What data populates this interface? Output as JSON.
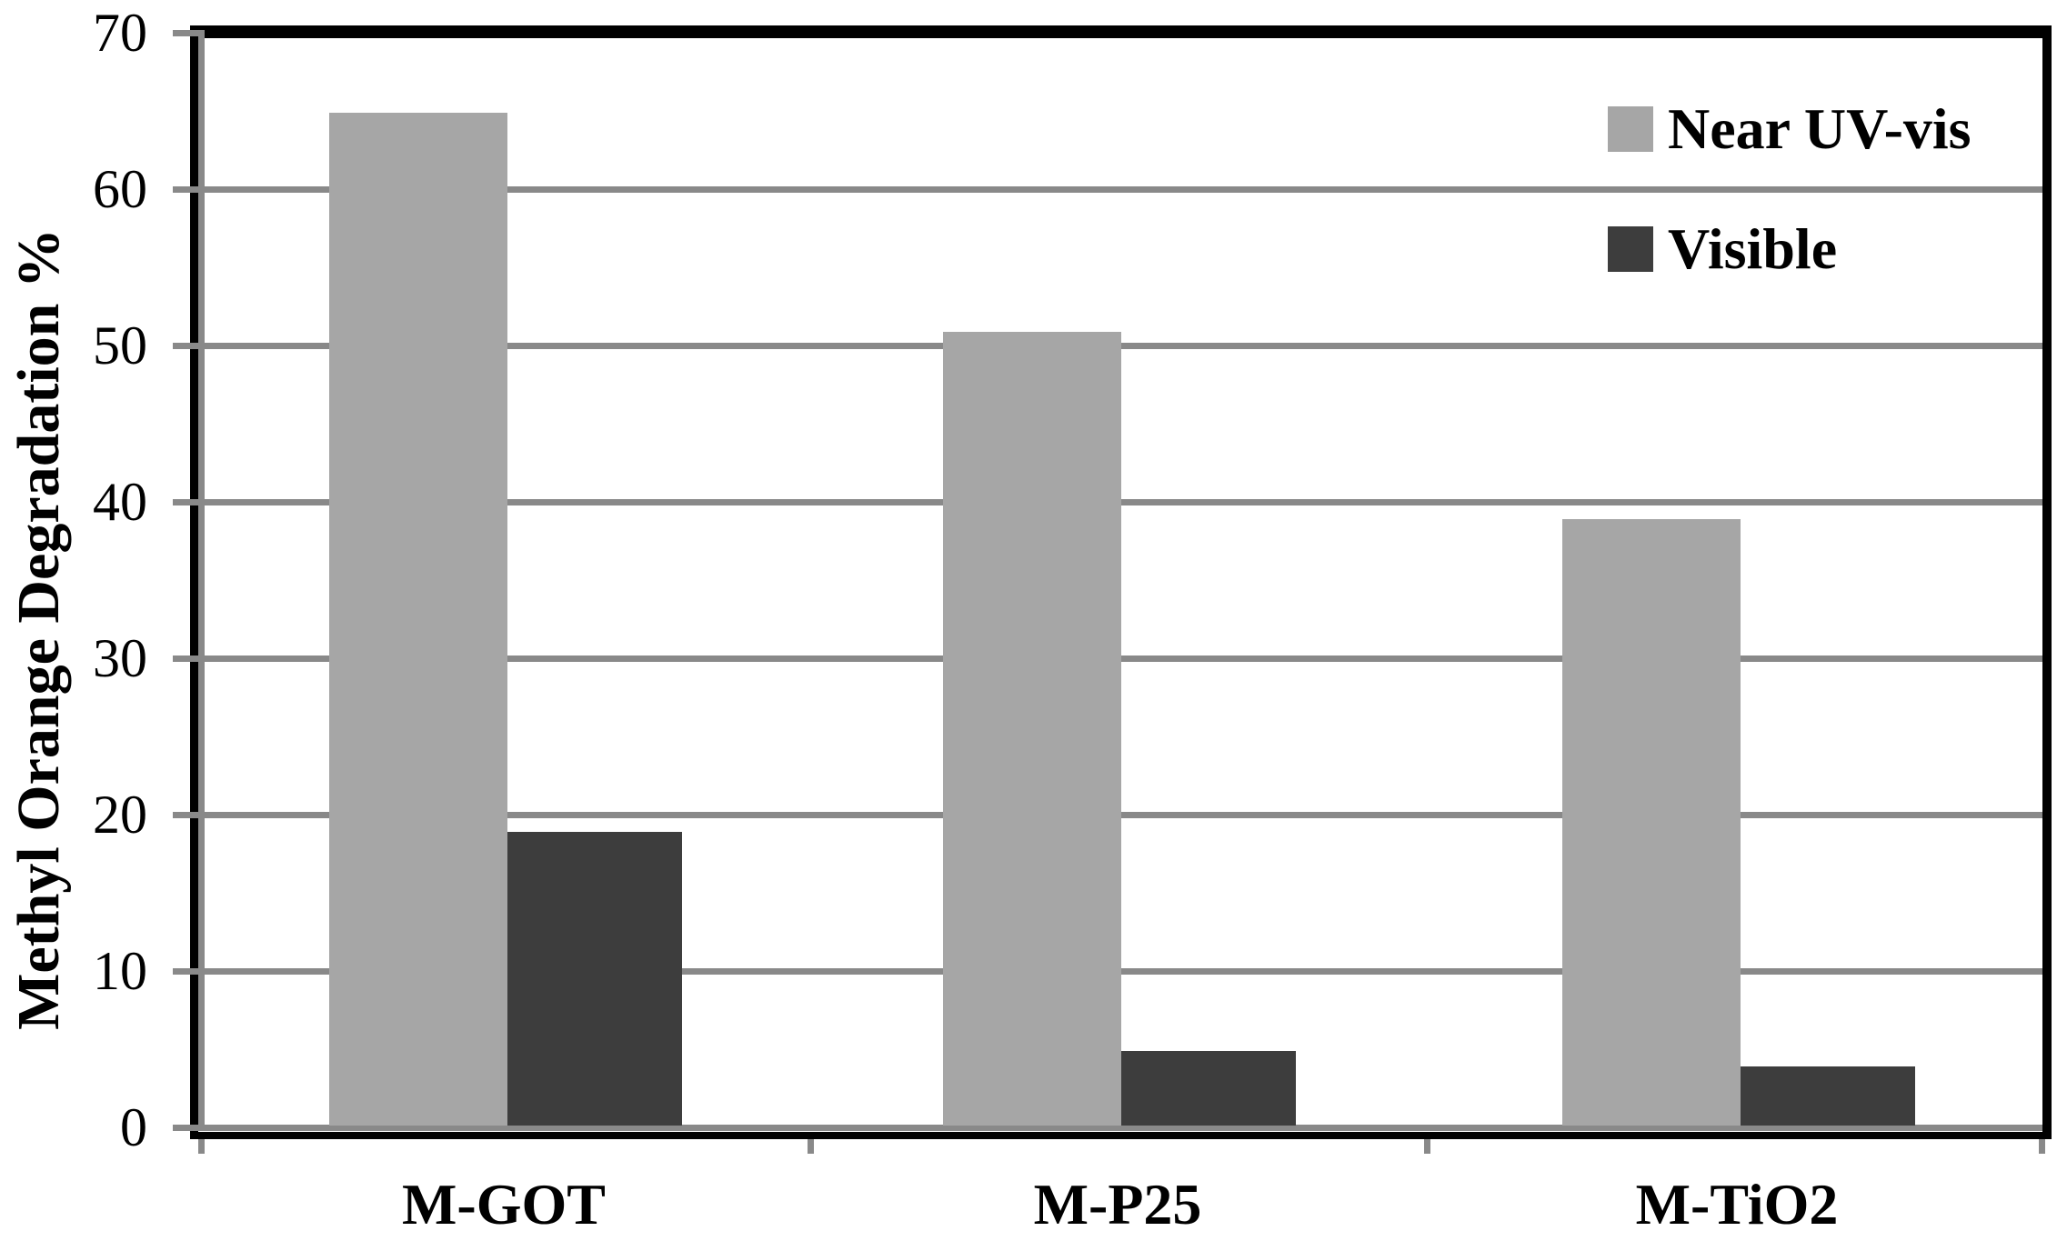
{
  "chart_data": {
    "type": "bar",
    "title": "",
    "ylabel": "Methyl Orange Degradation %",
    "xlabel": "",
    "categories": [
      "M-GOT",
      "M-P25",
      "M-TiO2"
    ],
    "series": [
      {
        "name": "Near UV-vis",
        "color": "#a6a6a6",
        "values": [
          65,
          51,
          39
        ]
      },
      {
        "name": "Visible",
        "color": "#3d3d3d",
        "values": [
          19,
          5,
          4
        ]
      }
    ],
    "ylim": [
      0,
      70
    ],
    "yticks": [
      0,
      10,
      20,
      30,
      40,
      50,
      60,
      70
    ],
    "grid": true,
    "gridline_color": "#898989",
    "axis_color": "#000000",
    "background": "#ffffff",
    "legend_position": "top-right"
  }
}
